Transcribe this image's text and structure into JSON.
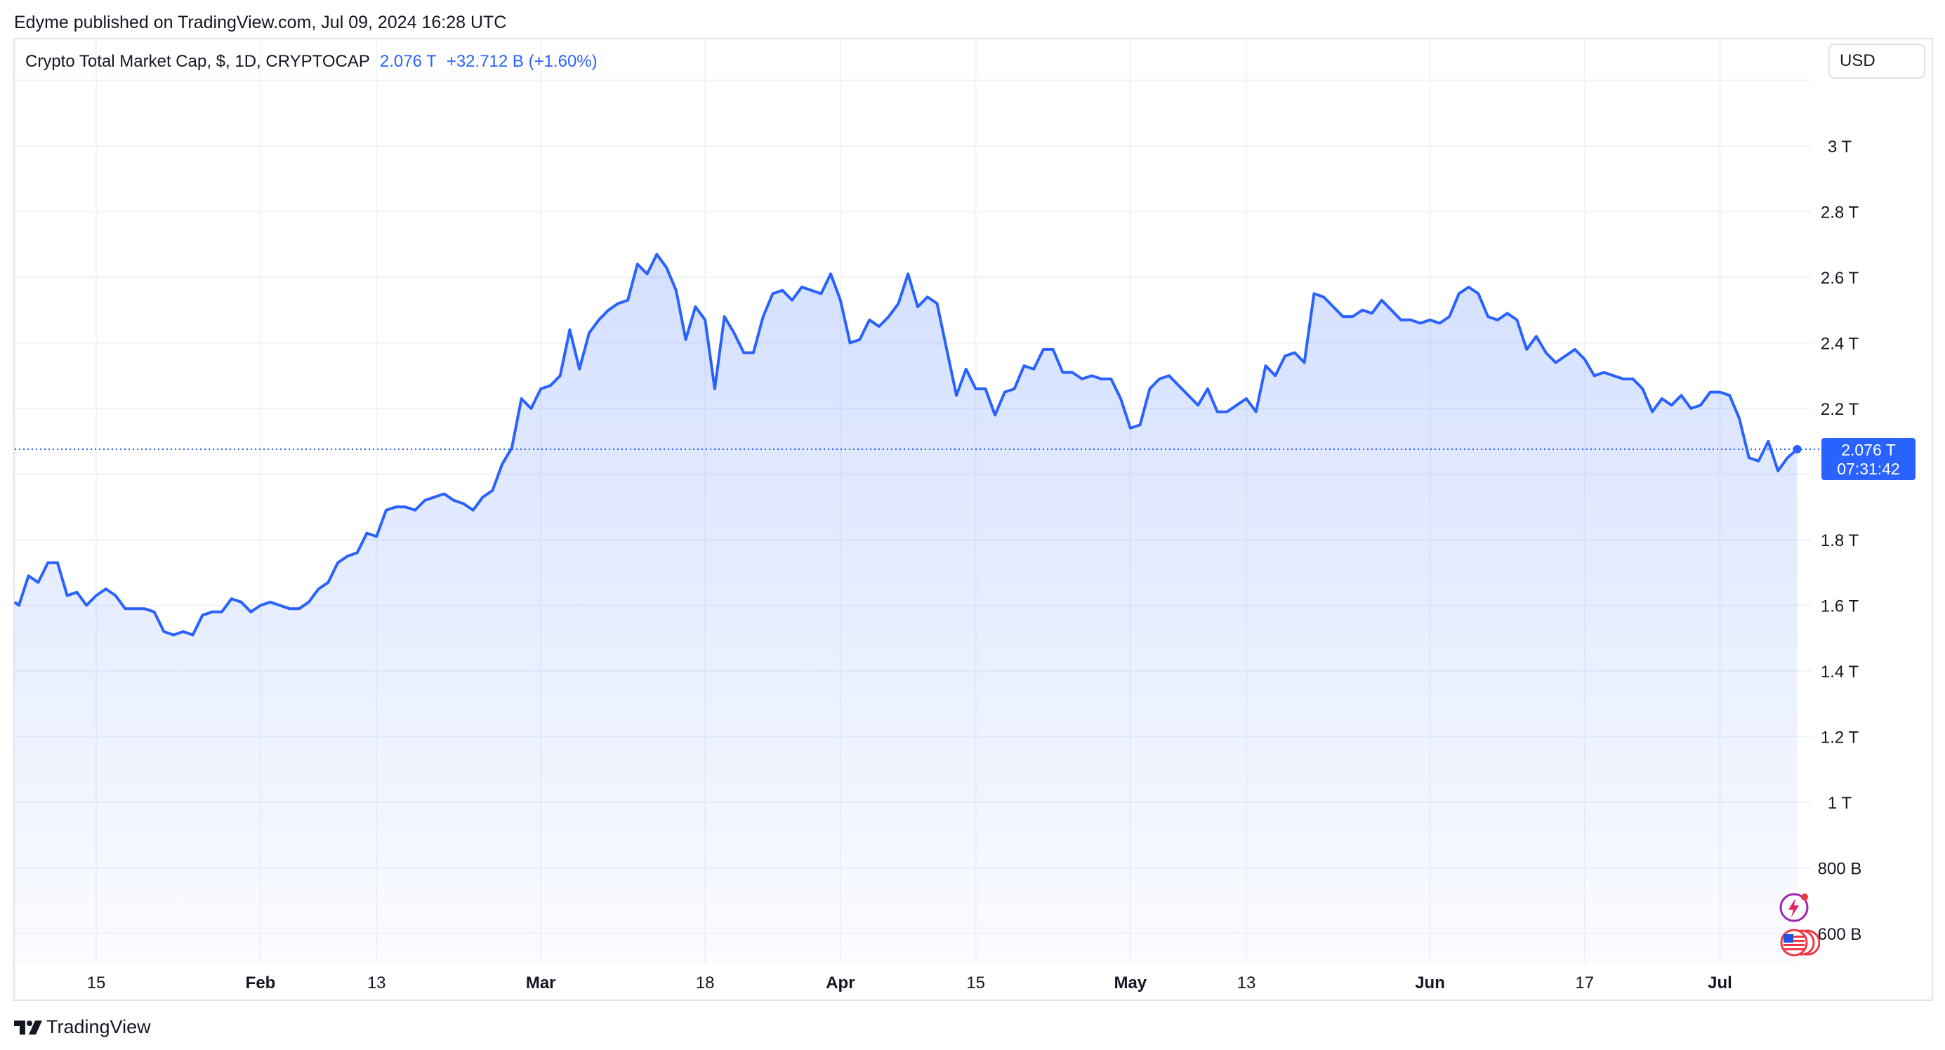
{
  "header": {
    "published": "Edyme published on TradingView.com, Jul 09, 2024 16:28 UTC"
  },
  "legend": {
    "symbol": "Crypto Total Market Cap, $, 1D, CRYPTOCAP",
    "price": "2.076 T",
    "change": "+32.712 B (+1.60%)"
  },
  "currency": "USD",
  "price_badge": {
    "price": "2.076 T",
    "countdown": "07:31:42"
  },
  "brand": "TradingView",
  "icons": [
    "flash-icon",
    "us-flag-icon"
  ],
  "colors": {
    "line": "#2962ff",
    "badge": "#2962ff",
    "grid": "#f0f3fa",
    "text": "#131722"
  },
  "chart_data": {
    "type": "area",
    "title": "Crypto Total Market Cap, $, 1D, CRYPTOCAP",
    "xlabel": "",
    "ylabel": "",
    "unit": "USD",
    "ylim": [
      0.46,
      3.26
    ],
    "grid": true,
    "last_value": 2.076,
    "x_ticks": [
      {
        "label": "15",
        "date": "2024-01-15"
      },
      {
        "label": "Feb",
        "date": "2024-02-01"
      },
      {
        "label": "13",
        "date": "2024-02-13"
      },
      {
        "label": "Mar",
        "date": "2024-03-01"
      },
      {
        "label": "18",
        "date": "2024-03-18"
      },
      {
        "label": "Apr",
        "date": "2024-04-01"
      },
      {
        "label": "15",
        "date": "2024-04-15"
      },
      {
        "label": "May",
        "date": "2024-05-01"
      },
      {
        "label": "13",
        "date": "2024-05-13"
      },
      {
        "label": "Jun",
        "date": "2024-06-01"
      },
      {
        "label": "17",
        "date": "2024-06-17"
      },
      {
        "label": "Jul",
        "date": "2024-07-01"
      }
    ],
    "y_ticks": [
      {
        "label": "600 B",
        "value": 0.6
      },
      {
        "label": "800 B",
        "value": 0.8
      },
      {
        "label": "1 T",
        "value": 1.0
      },
      {
        "label": "1.2 T",
        "value": 1.2
      },
      {
        "label": "1.4 T",
        "value": 1.4
      },
      {
        "label": "1.6 T",
        "value": 1.6
      },
      {
        "label": "1.8 T",
        "value": 1.8
      },
      {
        "label": "2.2 T",
        "value": 2.2
      },
      {
        "label": "2.4 T",
        "value": 2.4
      },
      {
        "label": "2.6 T",
        "value": 2.6
      },
      {
        "label": "2.8 T",
        "value": 2.8
      },
      {
        "label": "3 T",
        "value": 3.0
      }
    ],
    "series": [
      {
        "name": "Crypto Total Market Cap",
        "x": [
          "2024-01-06",
          "2024-01-07",
          "2024-01-08",
          "2024-01-09",
          "2024-01-10",
          "2024-01-11",
          "2024-01-12",
          "2024-01-13",
          "2024-01-14",
          "2024-01-15",
          "2024-01-16",
          "2024-01-17",
          "2024-01-18",
          "2024-01-19",
          "2024-01-20",
          "2024-01-21",
          "2024-01-22",
          "2024-01-23",
          "2024-01-24",
          "2024-01-25",
          "2024-01-26",
          "2024-01-27",
          "2024-01-28",
          "2024-01-29",
          "2024-01-30",
          "2024-01-31",
          "2024-02-01",
          "2024-02-02",
          "2024-02-03",
          "2024-02-04",
          "2024-02-05",
          "2024-02-06",
          "2024-02-07",
          "2024-02-08",
          "2024-02-09",
          "2024-02-10",
          "2024-02-11",
          "2024-02-12",
          "2024-02-13",
          "2024-02-14",
          "2024-02-15",
          "2024-02-16",
          "2024-02-17",
          "2024-02-18",
          "2024-02-19",
          "2024-02-20",
          "2024-02-21",
          "2024-02-22",
          "2024-02-23",
          "2024-02-24",
          "2024-02-25",
          "2024-02-26",
          "2024-02-27",
          "2024-02-28",
          "2024-02-29",
          "2024-03-01",
          "2024-03-02",
          "2024-03-03",
          "2024-03-04",
          "2024-03-05",
          "2024-03-06",
          "2024-03-07",
          "2024-03-08",
          "2024-03-09",
          "2024-03-10",
          "2024-03-11",
          "2024-03-12",
          "2024-03-13",
          "2024-03-14",
          "2024-03-15",
          "2024-03-16",
          "2024-03-17",
          "2024-03-18",
          "2024-03-19",
          "2024-03-20",
          "2024-03-21",
          "2024-03-22",
          "2024-03-23",
          "2024-03-24",
          "2024-03-25",
          "2024-03-26",
          "2024-03-27",
          "2024-03-28",
          "2024-03-29",
          "2024-03-30",
          "2024-03-31",
          "2024-04-01",
          "2024-04-02",
          "2024-04-03",
          "2024-04-04",
          "2024-04-05",
          "2024-04-06",
          "2024-04-07",
          "2024-04-08",
          "2024-04-09",
          "2024-04-10",
          "2024-04-11",
          "2024-04-12",
          "2024-04-13",
          "2024-04-14",
          "2024-04-15",
          "2024-04-16",
          "2024-04-17",
          "2024-04-18",
          "2024-04-19",
          "2024-04-20",
          "2024-04-21",
          "2024-04-22",
          "2024-04-23",
          "2024-04-24",
          "2024-04-25",
          "2024-04-26",
          "2024-04-27",
          "2024-04-28",
          "2024-04-29",
          "2024-04-30",
          "2024-05-01",
          "2024-05-02",
          "2024-05-03",
          "2024-05-04",
          "2024-05-05",
          "2024-05-06",
          "2024-05-07",
          "2024-05-08",
          "2024-05-09",
          "2024-05-10",
          "2024-05-11",
          "2024-05-12",
          "2024-05-13",
          "2024-05-14",
          "2024-05-15",
          "2024-05-16",
          "2024-05-17",
          "2024-05-18",
          "2024-05-19",
          "2024-05-20",
          "2024-05-21",
          "2024-05-22",
          "2024-05-23",
          "2024-05-24",
          "2024-05-25",
          "2024-05-26",
          "2024-05-27",
          "2024-05-28",
          "2024-05-29",
          "2024-05-30",
          "2024-05-31",
          "2024-06-01",
          "2024-06-02",
          "2024-06-03",
          "2024-06-04",
          "2024-06-05",
          "2024-06-06",
          "2024-06-07",
          "2024-06-08",
          "2024-06-09",
          "2024-06-10",
          "2024-06-11",
          "2024-06-12",
          "2024-06-13",
          "2024-06-14",
          "2024-06-15",
          "2024-06-16",
          "2024-06-17",
          "2024-06-18",
          "2024-06-19",
          "2024-06-20",
          "2024-06-21",
          "2024-06-22",
          "2024-06-23",
          "2024-06-24",
          "2024-06-25",
          "2024-06-26",
          "2024-06-27",
          "2024-06-28",
          "2024-06-29",
          "2024-06-30",
          "2024-07-01",
          "2024-07-02",
          "2024-07-03",
          "2024-07-04",
          "2024-07-05",
          "2024-07-06",
          "2024-07-07",
          "2024-07-08",
          "2024-07-09"
        ],
        "values": [
          1.61,
          1.6,
          1.69,
          1.67,
          1.73,
          1.73,
          1.63,
          1.64,
          1.6,
          1.63,
          1.65,
          1.63,
          1.59,
          1.59,
          1.59,
          1.58,
          1.52,
          1.51,
          1.52,
          1.51,
          1.57,
          1.58,
          1.58,
          1.62,
          1.61,
          1.58,
          1.6,
          1.61,
          1.6,
          1.59,
          1.59,
          1.61,
          1.65,
          1.67,
          1.73,
          1.75,
          1.76,
          1.82,
          1.81,
          1.89,
          1.9,
          1.9,
          1.89,
          1.92,
          1.93,
          1.94,
          1.92,
          1.91,
          1.89,
          1.93,
          1.95,
          2.03,
          2.08,
          2.23,
          2.2,
          2.26,
          2.27,
          2.3,
          2.44,
          2.32,
          2.43,
          2.47,
          2.5,
          2.52,
          2.53,
          2.64,
          2.61,
          2.67,
          2.63,
          2.56,
          2.41,
          2.51,
          2.47,
          2.26,
          2.48,
          2.43,
          2.37,
          2.37,
          2.48,
          2.55,
          2.56,
          2.53,
          2.57,
          2.56,
          2.55,
          2.61,
          2.53,
          2.4,
          2.41,
          2.47,
          2.45,
          2.48,
          2.52,
          2.61,
          2.51,
          2.54,
          2.52,
          2.38,
          2.24,
          2.32,
          2.26,
          2.26,
          2.18,
          2.25,
          2.26,
          2.33,
          2.32,
          2.38,
          2.38,
          2.31,
          2.31,
          2.29,
          2.3,
          2.29,
          2.29,
          2.23,
          2.14,
          2.15,
          2.26,
          2.29,
          2.3,
          2.27,
          2.24,
          2.21,
          2.26,
          2.19,
          2.19,
          2.21,
          2.23,
          2.19,
          2.33,
          2.3,
          2.36,
          2.37,
          2.34,
          2.55,
          2.54,
          2.51,
          2.48,
          2.48,
          2.5,
          2.49,
          2.53,
          2.5,
          2.47,
          2.47,
          2.46,
          2.47,
          2.46,
          2.48,
          2.55,
          2.57,
          2.55,
          2.48,
          2.47,
          2.49,
          2.47,
          2.38,
          2.42,
          2.37,
          2.34,
          2.36,
          2.38,
          2.35,
          2.3,
          2.31,
          2.3,
          2.29,
          2.29,
          2.26,
          2.19,
          2.23,
          2.21,
          2.24,
          2.2,
          2.21,
          2.25,
          2.25,
          2.24,
          2.17,
          2.05,
          2.04,
          2.1,
          2.01,
          2.05,
          2.076
        ]
      }
    ]
  }
}
